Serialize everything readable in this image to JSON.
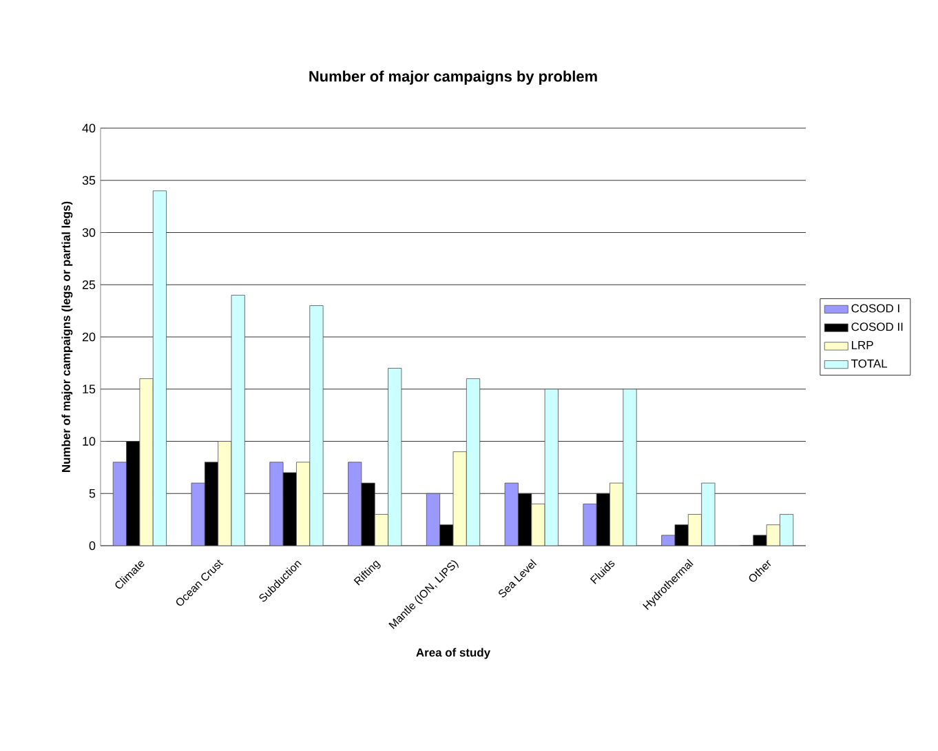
{
  "chart_data": {
    "type": "bar",
    "title": "Number of major campaigns by problem",
    "xlabel": "Area of study",
    "ylabel": "Number of major campaigns (legs or partial legs)",
    "categories": [
      "Climate",
      "Ocean Crust",
      "Subduction",
      "Rifting",
      "Mantle (ION, LIPS)",
      "Sea Level",
      "Fluids",
      "Hydrothermal",
      "Other"
    ],
    "series": [
      {
        "name": "COSOD I",
        "color": "#9999ff",
        "values": [
          8,
          6,
          8,
          8,
          5,
          6,
          4,
          1,
          0
        ]
      },
      {
        "name": "COSOD II",
        "color": "#000000",
        "values": [
          10,
          8,
          7,
          6,
          2,
          5,
          5,
          2,
          1
        ]
      },
      {
        "name": "LRP",
        "color": "#ffffcc",
        "values": [
          16,
          10,
          8,
          3,
          9,
          4,
          6,
          3,
          2
        ]
      },
      {
        "name": "TOTAL",
        "color": "#ccffff",
        "values": [
          34,
          24,
          23,
          17,
          16,
          15,
          15,
          6,
          3
        ]
      }
    ],
    "ylim": [
      0,
      40
    ],
    "yticks": [
      0,
      5,
      10,
      15,
      20,
      25,
      30,
      35,
      40
    ],
    "grid": "y",
    "legend": "right"
  }
}
